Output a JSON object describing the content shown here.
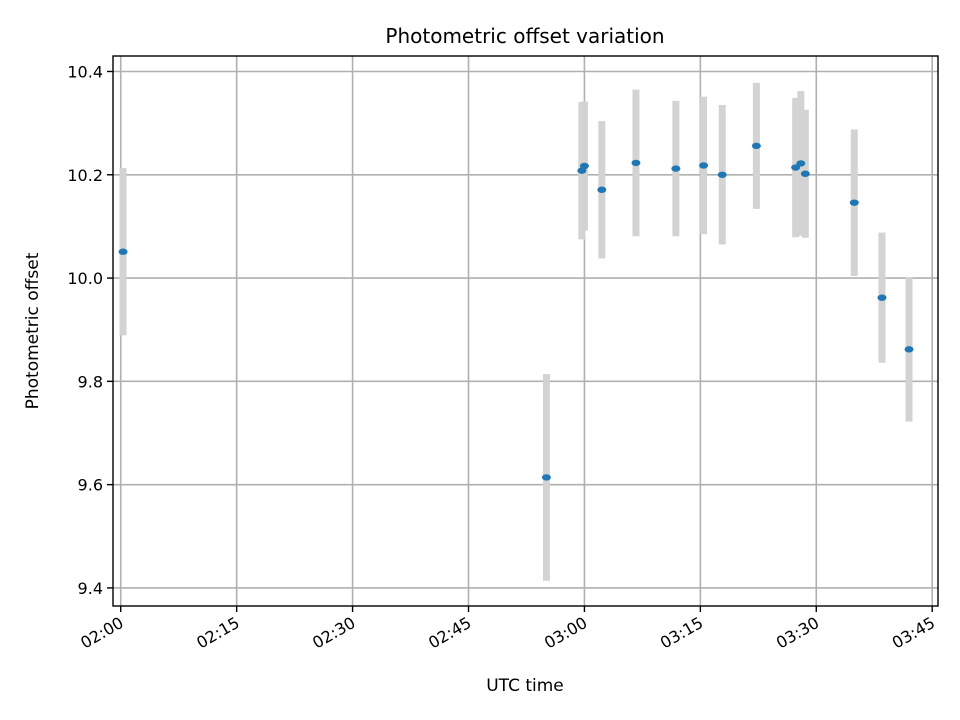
{
  "chart_data": {
    "type": "scatter",
    "title": "Photometric offset variation",
    "xlabel": "UTC time",
    "ylabel": "Photometric offset",
    "xlim": [
      "01:59",
      "03:45:45"
    ],
    "ylim": [
      9.365,
      10.43
    ],
    "grid": true,
    "x_ticks": [
      "02:00",
      "02:15",
      "02:30",
      "02:45",
      "03:00",
      "03:15",
      "03:30",
      "03:45"
    ],
    "y_ticks": [
      9.4,
      9.6,
      9.8,
      10.0,
      10.2,
      10.4
    ],
    "y_tick_labels": [
      "9.4",
      "9.6",
      "9.8",
      "10.0",
      "10.2",
      "10.4"
    ],
    "point_color": "#1f77b4",
    "errorbar_color": "#d3d3d3",
    "points": [
      {
        "x": "02:00:18",
        "y": 10.051,
        "err": 0.162
      },
      {
        "x": "02:55:05",
        "y": 9.614,
        "err": 0.2
      },
      {
        "x": "02:59:40",
        "y": 10.208,
        "err": 0.133
      },
      {
        "x": "03:00:00",
        "y": 10.217,
        "err": 0.125
      },
      {
        "x": "03:02:15",
        "y": 10.171,
        "err": 0.133
      },
      {
        "x": "03:06:40",
        "y": 10.223,
        "err": 0.142
      },
      {
        "x": "03:11:50",
        "y": 10.212,
        "err": 0.131
      },
      {
        "x": "03:15:25",
        "y": 10.218,
        "err": 0.133
      },
      {
        "x": "03:17:50",
        "y": 10.2,
        "err": 0.135
      },
      {
        "x": "03:22:15",
        "y": 10.256,
        "err": 0.122
      },
      {
        "x": "03:27:20",
        "y": 10.214,
        "err": 0.135
      },
      {
        "x": "03:28:00",
        "y": 10.222,
        "err": 0.14
      },
      {
        "x": "03:28:35",
        "y": 10.202,
        "err": 0.124
      },
      {
        "x": "03:34:55",
        "y": 10.146,
        "err": 0.142
      },
      {
        "x": "03:38:30",
        "y": 9.962,
        "err": 0.126
      },
      {
        "x": "03:42:00",
        "y": 9.862,
        "err": 0.14
      }
    ]
  }
}
